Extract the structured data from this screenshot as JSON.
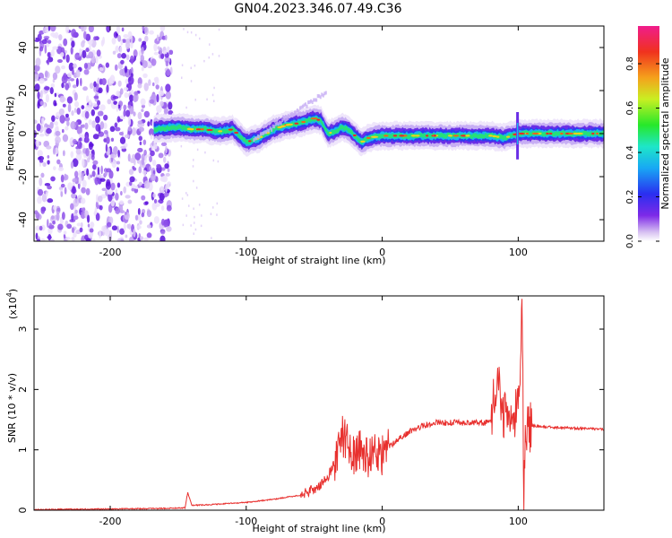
{
  "figure": {
    "title": "GN04.2023.346.07.49.C36"
  },
  "chart_data": [
    {
      "type": "heatmap",
      "title": "",
      "xlabel": "Height of straight line (km)",
      "ylabel": "Frequency (Hz)",
      "xlim": [
        -256,
        163
      ],
      "ylim": [
        -50,
        50
      ],
      "x_ticks": [
        -200,
        -100,
        0,
        100
      ],
      "x_tick_labels": [
        "-200",
        "-100",
        "0",
        "100"
      ],
      "y_ticks": [
        -40,
        -20,
        0,
        20,
        40
      ],
      "y_tick_labels": [
        "-40",
        "-20",
        "0",
        "20",
        "40"
      ],
      "colorbar": {
        "label": "Normalized spectral amplitude",
        "range": [
          0,
          0.97
        ],
        "ticks": [
          0.0,
          0.2,
          0.4,
          0.6,
          0.8
        ],
        "tick_labels": [
          "0.0",
          "0.2",
          "0.4",
          "0.6",
          "0.8"
        ],
        "colormap": "rainbow (white-purple-blue-cyan-green-yellow-red-magenta)"
      },
      "trace": {
        "x": [
          -168,
          -150,
          -140,
          -130,
          -120,
          -110,
          -100,
          -95,
          -90,
          -80,
          -70,
          -60,
          -50,
          -45,
          -40,
          -35,
          -30,
          -25,
          -20,
          -15,
          -10,
          0,
          20,
          40,
          60,
          80,
          90,
          100,
          120,
          163
        ],
        "freq": [
          2,
          3,
          2,
          2,
          1,
          2,
          -4,
          -3,
          -2,
          2,
          4,
          5,
          7,
          6,
          0,
          1,
          3,
          2,
          -1,
          -4,
          -2,
          -1,
          -1,
          -1,
          -1,
          -1,
          -2,
          0,
          0,
          0
        ]
      },
      "noise_region_x": [
        -256,
        -155
      ]
    },
    {
      "type": "line",
      "title": "",
      "xlabel": "Height of straight line (km)",
      "ylabel": "SNR (10 * v/v)",
      "scale_note": "(x10",
      "scale_exponent": "4",
      "xlim": [
        -256,
        163
      ],
      "ylim": [
        0,
        3.55
      ],
      "x_ticks": [
        -200,
        -100,
        0,
        100
      ],
      "x_tick_labels": [
        "-200",
        "-100",
        "0",
        "100"
      ],
      "y_ticks": [
        0,
        1,
        2,
        3
      ],
      "y_tick_labels": [
        "0",
        "1",
        "2",
        "3"
      ],
      "series": [
        {
          "color": "#e8302e",
          "x": [
            -256,
            -200,
            -160,
            -145,
            -143,
            -140,
            -120,
            -100,
            -80,
            -60,
            -50,
            -45,
            -40,
            -35,
            -30,
            -25,
            -20,
            -15,
            -10,
            -5,
            0,
            5,
            10,
            20,
            30,
            40,
            50,
            60,
            70,
            80,
            85,
            90,
            95,
            100,
            103,
            104,
            105,
            107,
            110,
            120,
            140,
            163
          ],
          "y": [
            0.01,
            0.02,
            0.03,
            0.04,
            0.3,
            0.08,
            0.1,
            0.13,
            0.18,
            0.25,
            0.35,
            0.42,
            0.55,
            0.8,
            1.25,
            1.1,
            0.9,
            1.0,
            0.85,
            1.0,
            0.9,
            1.05,
            1.15,
            1.3,
            1.4,
            1.45,
            1.45,
            1.45,
            1.45,
            1.45,
            2.25,
            1.5,
            1.55,
            1.6,
            3.5,
            0.05,
            1.2,
            1.4,
            1.4,
            1.38,
            1.36,
            1.34
          ]
        }
      ]
    }
  ]
}
